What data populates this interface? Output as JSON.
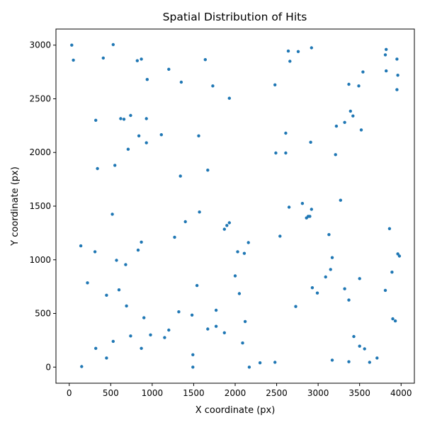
{
  "chart_data": {
    "type": "scatter",
    "title": "Spatial Distribution of Hits",
    "xlabel": "X coordinate (px)",
    "ylabel": "Y coordinate (px)",
    "xlim": [
      -160,
      4160
    ],
    "ylim": [
      -150,
      3150
    ],
    "xticks": [
      0,
      500,
      1000,
      1500,
      2000,
      2500,
      3000,
      3500,
      4000
    ],
    "yticks": [
      0,
      500,
      1000,
      1500,
      2000,
      2500,
      3000
    ],
    "grid": false,
    "legend": "none",
    "marker_color": "#1f77b4",
    "points": [
      [
        30,
        3000
      ],
      [
        530,
        3005
      ],
      [
        50,
        2860
      ],
      [
        410,
        2880
      ],
      [
        820,
        2855
      ],
      [
        870,
        2870
      ],
      [
        1640,
        2865
      ],
      [
        1200,
        2775
      ],
      [
        940,
        2680
      ],
      [
        1350,
        2655
      ],
      [
        1730,
        2620
      ],
      [
        1930,
        2505
      ],
      [
        2640,
        2945
      ],
      [
        2760,
        2940
      ],
      [
        2920,
        2975
      ],
      [
        2660,
        2850
      ],
      [
        3820,
        2960
      ],
      [
        3810,
        2910
      ],
      [
        3950,
        2870
      ],
      [
        3820,
        2760
      ],
      [
        3960,
        2720
      ],
      [
        3540,
        2750
      ],
      [
        3370,
        2635
      ],
      [
        3490,
        2620
      ],
      [
        2480,
        2630
      ],
      [
        3950,
        2585
      ],
      [
        320,
        2300
      ],
      [
        620,
        2315
      ],
      [
        660,
        2310
      ],
      [
        740,
        2345
      ],
      [
        930,
        2315
      ],
      [
        3390,
        2385
      ],
      [
        3420,
        2340
      ],
      [
        3320,
        2280
      ],
      [
        3220,
        2245
      ],
      [
        3520,
        2210
      ],
      [
        840,
        2155
      ],
      [
        1110,
        2165
      ],
      [
        1560,
        2155
      ],
      [
        930,
        2090
      ],
      [
        710,
        2030
      ],
      [
        2610,
        2180
      ],
      [
        2910,
        2095
      ],
      [
        2490,
        1995
      ],
      [
        2610,
        1995
      ],
      [
        3210,
        1980
      ],
      [
        550,
        1880
      ],
      [
        340,
        1850
      ],
      [
        1670,
        1835
      ],
      [
        1340,
        1780
      ],
      [
        3270,
        1555
      ],
      [
        2810,
        1525
      ],
      [
        2650,
        1490
      ],
      [
        2920,
        1470
      ],
      [
        2880,
        1405
      ],
      [
        2860,
        1390
      ],
      [
        2900,
        1405
      ],
      [
        520,
        1425
      ],
      [
        1570,
        1445
      ],
      [
        1400,
        1355
      ],
      [
        1930,
        1345
      ],
      [
        1900,
        1320
      ],
      [
        1870,
        1285
      ],
      [
        3860,
        1290
      ],
      [
        3130,
        1235
      ],
      [
        2540,
        1220
      ],
      [
        1270,
        1210
      ],
      [
        870,
        1165
      ],
      [
        2160,
        1160
      ],
      [
        140,
        1130
      ],
      [
        310,
        1075
      ],
      [
        830,
        1090
      ],
      [
        2030,
        1075
      ],
      [
        2110,
        1060
      ],
      [
        3960,
        1055
      ],
      [
        3980,
        1035
      ],
      [
        3170,
        1020
      ],
      [
        570,
        995
      ],
      [
        680,
        955
      ],
      [
        3150,
        910
      ],
      [
        3890,
        885
      ],
      [
        2000,
        850
      ],
      [
        3090,
        840
      ],
      [
        3500,
        825
      ],
      [
        220,
        785
      ],
      [
        1540,
        760
      ],
      [
        2930,
        740
      ],
      [
        3320,
        730
      ],
      [
        3810,
        715
      ],
      [
        600,
        720
      ],
      [
        450,
        670
      ],
      [
        2050,
        685
      ],
      [
        2990,
        690
      ],
      [
        3370,
        625
      ],
      [
        690,
        570
      ],
      [
        2730,
        565
      ],
      [
        1770,
        530
      ],
      [
        1320,
        515
      ],
      [
        1480,
        485
      ],
      [
        900,
        460
      ],
      [
        3900,
        450
      ],
      [
        3930,
        430
      ],
      [
        2120,
        425
      ],
      [
        1770,
        380
      ],
      [
        1670,
        355
      ],
      [
        1200,
        345
      ],
      [
        1870,
        320
      ],
      [
        980,
        300
      ],
      [
        740,
        290
      ],
      [
        1150,
        275
      ],
      [
        3430,
        285
      ],
      [
        530,
        240
      ],
      [
        2090,
        225
      ],
      [
        320,
        175
      ],
      [
        870,
        175
      ],
      [
        3500,
        195
      ],
      [
        3560,
        170
      ],
      [
        1490,
        115
      ],
      [
        450,
        85
      ],
      [
        3710,
        85
      ],
      [
        3170,
        65
      ],
      [
        3370,
        50
      ],
      [
        3620,
        45
      ],
      [
        2300,
        40
      ],
      [
        2480,
        45
      ],
      [
        150,
        5
      ],
      [
        1490,
        0
      ],
      [
        2170,
        0
      ]
    ]
  }
}
